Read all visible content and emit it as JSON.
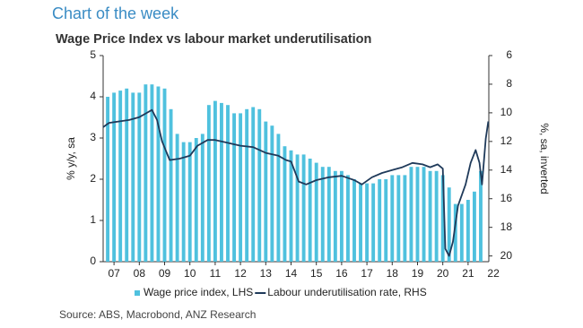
{
  "header": "Chart of the week",
  "source": "Source: ABS, Macrobond, ANZ Research",
  "chart_data": {
    "type": "bar-line",
    "title": "Wage Price Index vs labour market underutilisation",
    "y_label": "% y/y, sa",
    "y2_label": "%, sa, inverted",
    "ylim": [
      0,
      5
    ],
    "yticks": [
      0,
      1,
      2,
      3,
      4,
      5
    ],
    "y2lim": [
      20.4,
      6
    ],
    "y2ticks": [
      6,
      8,
      10,
      12,
      14,
      16,
      18,
      20
    ],
    "y2_inverted": true,
    "xlim": [
      2006.57,
      2021.82
    ],
    "xticks": [
      {
        "value": 2007,
        "label": "07"
      },
      {
        "value": 2008,
        "label": "08"
      },
      {
        "value": 2009,
        "label": "09"
      },
      {
        "value": 2010,
        "label": "10"
      },
      {
        "value": 2011,
        "label": "11"
      },
      {
        "value": 2012,
        "label": "12"
      },
      {
        "value": 2013,
        "label": "13"
      },
      {
        "value": 2014,
        "label": "14"
      },
      {
        "value": 2015,
        "label": "15"
      },
      {
        "value": 2016,
        "label": "16"
      },
      {
        "value": 2017,
        "label": "17"
      },
      {
        "value": 2018,
        "label": "18"
      },
      {
        "value": 2019,
        "label": "19"
      },
      {
        "value": 2020,
        "label": "20"
      },
      {
        "value": 2021,
        "label": "21"
      },
      {
        "value": 2022,
        "label": "22"
      }
    ],
    "series": [
      {
        "name": "Wage price index, LHS",
        "type": "bar",
        "color": "#4fc1de",
        "x": [
          2006.75,
          2007,
          2007.25,
          2007.5,
          2007.75,
          2008,
          2008.25,
          2008.5,
          2008.75,
          2009,
          2009.25,
          2009.5,
          2009.75,
          2010,
          2010.25,
          2010.5,
          2010.75,
          2011,
          2011.25,
          2011.5,
          2011.75,
          2012,
          2012.25,
          2012.5,
          2012.75,
          2013,
          2013.25,
          2013.5,
          2013.75,
          2014,
          2014.25,
          2014.5,
          2014.75,
          2015,
          2015.25,
          2015.5,
          2015.75,
          2016,
          2016.25,
          2016.5,
          2016.75,
          2017,
          2017.25,
          2017.5,
          2017.75,
          2018,
          2018.25,
          2018.5,
          2018.75,
          2019,
          2019.25,
          2019.5,
          2019.75,
          2020,
          2020.25,
          2020.5,
          2020.75,
          2021,
          2021.25,
          2021.5
        ],
        "values": [
          4.0,
          4.1,
          4.15,
          4.2,
          4.1,
          4.1,
          4.3,
          4.3,
          4.25,
          4.2,
          3.7,
          3.1,
          2.9,
          2.9,
          3.0,
          3.1,
          3.8,
          3.9,
          3.85,
          3.8,
          3.6,
          3.6,
          3.7,
          3.75,
          3.7,
          3.4,
          3.3,
          3.1,
          2.8,
          2.7,
          2.6,
          2.6,
          2.5,
          2.4,
          2.3,
          2.3,
          2.2,
          2.2,
          2.1,
          2.0,
          1.9,
          1.9,
          1.9,
          2.0,
          2.0,
          2.1,
          2.1,
          2.1,
          2.3,
          2.3,
          2.3,
          2.2,
          2.2,
          2.1,
          1.8,
          1.4,
          1.4,
          1.5,
          1.7,
          2.2
        ]
      },
      {
        "name": "Labour underutilisation rate, RHS",
        "type": "line",
        "axis": "y2",
        "color": "#1f3a5a",
        "x": [
          2006.57,
          2006.8,
          2007.2,
          2007.6,
          2008.0,
          2008.3,
          2008.5,
          2008.7,
          2008.9,
          2009.2,
          2009.6,
          2010.0,
          2010.3,
          2010.7,
          2011.0,
          2011.5,
          2012.0,
          2012.5,
          2013.0,
          2013.5,
          2013.8,
          2014.0,
          2014.3,
          2014.6,
          2015.0,
          2015.5,
          2016.0,
          2016.5,
          2016.8,
          2017.2,
          2017.6,
          2018.0,
          2018.4,
          2018.8,
          2019.2,
          2019.5,
          2019.8,
          2020.0,
          2020.1,
          2020.25,
          2020.4,
          2020.6,
          2020.9,
          2021.1,
          2021.3,
          2021.45,
          2021.55,
          2021.7,
          2021.8
        ],
        "values": [
          11.0,
          10.7,
          10.6,
          10.5,
          10.3,
          10.0,
          9.8,
          10.5,
          12.0,
          13.3,
          13.2,
          13.0,
          12.3,
          11.9,
          11.9,
          12.1,
          12.3,
          12.4,
          12.8,
          13.0,
          13.3,
          13.4,
          14.8,
          15.0,
          14.7,
          14.5,
          14.4,
          14.7,
          15.0,
          14.5,
          14.2,
          14.0,
          13.8,
          13.5,
          13.6,
          13.8,
          13.6,
          13.9,
          19.5,
          20.0,
          19.0,
          16.5,
          15.0,
          13.5,
          12.6,
          13.5,
          15.0,
          11.8,
          10.6
        ]
      }
    ]
  }
}
